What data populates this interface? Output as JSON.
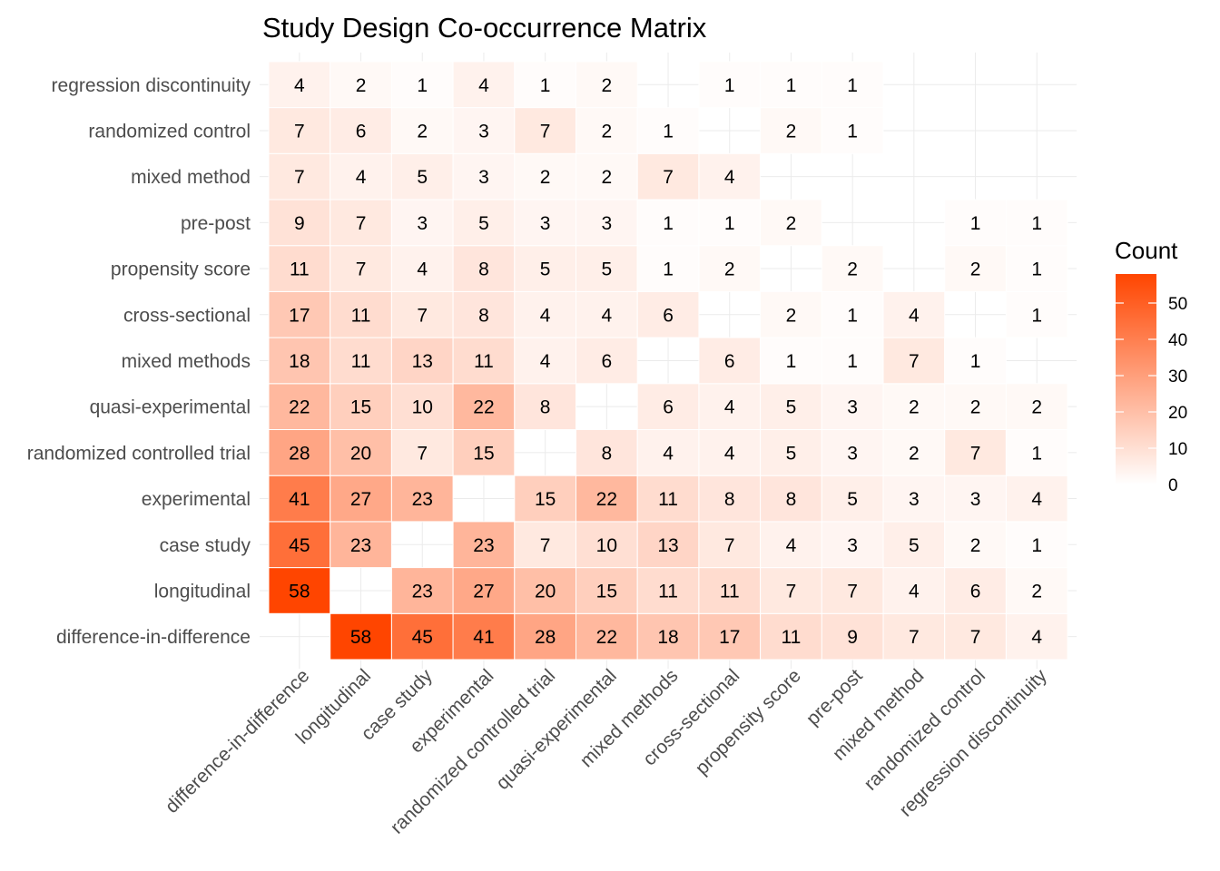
{
  "chart_data": {
    "type": "heatmap",
    "title": "Study Design Co-occurrence Matrix",
    "xlabel": "",
    "ylabel": "",
    "x_categories": [
      "difference-in-difference",
      "longitudinal",
      "case study",
      "experimental",
      "randomized controlled trial",
      "quasi-experimental",
      "mixed methods",
      "cross-sectional",
      "propensity score",
      "pre-post",
      "mixed method",
      "randomized control",
      "regression discontinuity"
    ],
    "y_categories_bottom_to_top": [
      "difference-in-difference",
      "longitudinal",
      "case study",
      "experimental",
      "randomized controlled trial",
      "quasi-experimental",
      "mixed methods",
      "cross-sectional",
      "propensity score",
      "pre-post",
      "mixed method",
      "randomized control",
      "regression discontinuity"
    ],
    "values": [
      [
        null,
        58,
        45,
        41,
        28,
        22,
        18,
        17,
        11,
        9,
        7,
        7,
        4
      ],
      [
        58,
        null,
        23,
        27,
        20,
        15,
        11,
        11,
        7,
        7,
        4,
        6,
        2
      ],
      [
        45,
        23,
        null,
        23,
        7,
        10,
        13,
        7,
        4,
        3,
        5,
        2,
        1
      ],
      [
        41,
        27,
        23,
        null,
        15,
        22,
        11,
        8,
        8,
        5,
        3,
        3,
        4
      ],
      [
        28,
        20,
        7,
        15,
        null,
        8,
        4,
        4,
        5,
        3,
        2,
        7,
        1
      ],
      [
        22,
        15,
        10,
        22,
        8,
        null,
        6,
        4,
        5,
        3,
        2,
        2,
        2
      ],
      [
        18,
        11,
        13,
        11,
        4,
        6,
        null,
        6,
        1,
        1,
        7,
        1,
        null
      ],
      [
        17,
        11,
        7,
        8,
        4,
        4,
        6,
        null,
        2,
        1,
        4,
        null,
        1
      ],
      [
        11,
        7,
        4,
        8,
        5,
        5,
        1,
        2,
        null,
        2,
        null,
        2,
        1
      ],
      [
        9,
        7,
        3,
        5,
        3,
        3,
        1,
        1,
        2,
        null,
        null,
        1,
        1
      ],
      [
        7,
        4,
        5,
        3,
        2,
        2,
        7,
        4,
        null,
        null,
        null,
        null,
        null
      ],
      [
        7,
        6,
        2,
        3,
        7,
        2,
        1,
        null,
        2,
        1,
        null,
        null,
        null
      ],
      [
        4,
        2,
        1,
        4,
        1,
        2,
        null,
        1,
        1,
        1,
        null,
        null,
        null
      ]
    ],
    "color_scale": {
      "low": "#ffffff",
      "high": "#ff4500",
      "min": 0,
      "max": 58
    },
    "legend": {
      "title": "Count",
      "ticks": [
        0,
        10,
        20,
        30,
        40,
        50
      ],
      "placement": "right"
    },
    "grid": true
  }
}
